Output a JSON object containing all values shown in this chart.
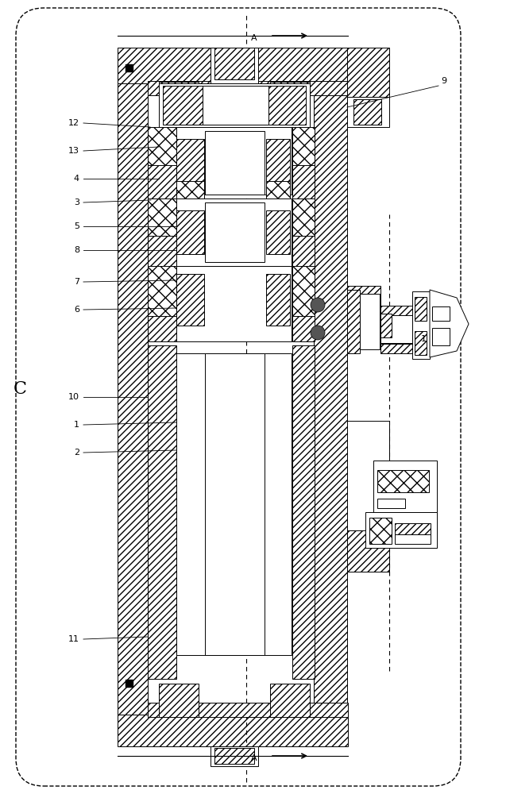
{
  "bg_color": "#ffffff",
  "lc": "#000000",
  "figsize": [
    6.37,
    10.0
  ],
  "dpi": 100,
  "labels_left": [
    [
      "12",
      108,
      845
    ],
    [
      "13",
      108,
      810
    ],
    [
      "4",
      108,
      775
    ],
    [
      "3",
      108,
      745
    ],
    [
      "5",
      108,
      715
    ],
    [
      "8",
      108,
      685
    ],
    [
      "7",
      108,
      645
    ],
    [
      "6",
      108,
      610
    ],
    [
      "10",
      108,
      500
    ],
    [
      "1",
      108,
      465
    ],
    [
      "2",
      108,
      430
    ],
    [
      "11",
      108,
      195
    ]
  ],
  "label_9": [
    555,
    895
  ],
  "label_1r": [
    530,
    570
  ],
  "label_C": [
    25,
    510
  ]
}
